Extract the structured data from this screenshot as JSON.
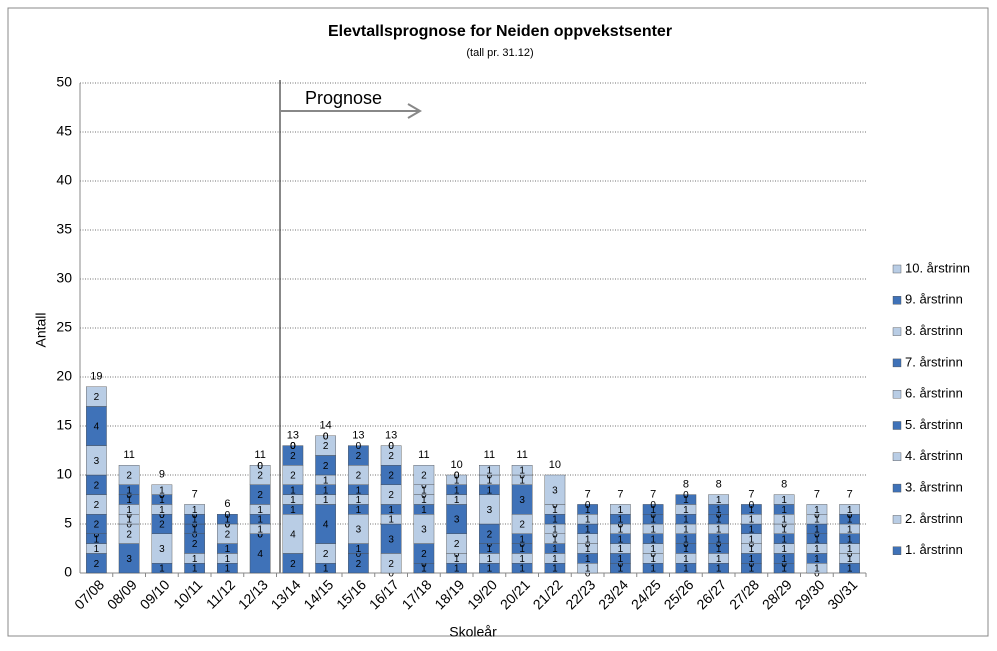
{
  "chart_data": {
    "type": "bar",
    "stacked": true,
    "title": "Elevtallsprognose for Neiden oppvekstsenter",
    "subtitle": "(tall pr. 31.12)",
    "x_label": "Skoleår",
    "y_label": "Antall",
    "annotation": "Prognose",
    "categories": [
      "07/08",
      "08/09",
      "09/10",
      "10/11",
      "11/12",
      "12/13",
      "13/14",
      "14/15",
      "15/16",
      "16/17",
      "17/18",
      "18/19",
      "19/20",
      "20/21",
      "21/22",
      "22/23",
      "23/24",
      "24/25",
      "25/26",
      "26/27",
      "27/28",
      "28/29",
      "29/30",
      "30/31"
    ],
    "totals": [
      19,
      11,
      9,
      7,
      6,
      11,
      13,
      14,
      13,
      13,
      11,
      10,
      11,
      11,
      10,
      7,
      7,
      7,
      8,
      8,
      7,
      8,
      7,
      7
    ],
    "series": [
      {
        "name": "1. årstrinn",
        "color": "#3f72b8",
        "values": [
          2,
          3,
          1,
          1,
          1,
          4,
          2,
          1,
          2,
          0,
          1,
          1,
          1,
          1,
          1,
          0,
          1,
          1,
          1,
          1,
          1,
          1,
          0,
          1
        ]
      },
      {
        "name": "2. årstrinn",
        "color": "#b9cde5",
        "values": [
          1,
          2,
          3,
          1,
          1,
          0,
          4,
          2,
          0,
          2,
          0,
          1,
          1,
          1,
          1,
          1,
          0,
          1,
          1,
          1,
          0,
          0,
          1,
          1
        ]
      },
      {
        "name": "3. årstrinn",
        "color": "#3f72b8",
        "values": [
          1,
          0,
          2,
          2,
          1,
          0,
          1,
          4,
          1,
          3,
          2,
          0,
          1,
          1,
          1,
          1,
          1,
          0,
          1,
          1,
          1,
          1,
          1,
          0
        ]
      },
      {
        "name": "4. årstrinn",
        "color": "#b9cde5",
        "values": [
          0,
          1,
          0,
          0,
          2,
          1,
          1,
          1,
          3,
          1,
          3,
          2,
          0,
          0,
          1,
          1,
          1,
          1,
          0,
          0,
          1,
          1,
          1,
          1
        ]
      },
      {
        "name": "5. årstrinn",
        "color": "#3f72b8",
        "values": [
          2,
          0,
          0,
          1,
          0,
          1,
          1,
          1,
          1,
          1,
          1,
          3,
          2,
          1,
          0,
          0,
          1,
          1,
          1,
          1,
          0,
          1,
          1,
          1
        ]
      },
      {
        "name": "6. årstrinn",
        "color": "#b9cde5",
        "values": [
          2,
          1,
          1,
          0,
          0,
          1,
          2,
          1,
          1,
          2,
          1,
          1,
          3,
          2,
          1,
          1,
          1,
          1,
          1,
          1,
          1,
          1,
          0,
          1
        ]
      },
      {
        "name": "7. årstrinn",
        "color": "#3f72b8",
        "values": [
          2,
          1,
          1,
          1,
          0,
          2,
          2,
          2,
          1,
          2,
          0,
          1,
          1,
          3,
          1,
          1,
          0,
          1,
          1,
          1,
          1,
          0,
          1,
          1
        ]
      },
      {
        "name": "8. årstrinn",
        "color": "#b9cde5",
        "values": [
          3,
          0,
          0,
          0,
          0,
          2,
          0,
          2,
          2,
          2,
          1,
          1,
          1,
          1,
          1,
          1,
          0,
          0,
          1,
          0,
          1,
          1,
          1,
          0
        ]
      },
      {
        "name": "9. årstrinn",
        "color": "#3f72b8",
        "values": [
          4,
          1,
          0,
          0,
          1,
          0,
          0,
          0,
          2,
          0,
          0,
          0,
          0,
          0,
          0,
          1,
          1,
          1,
          1,
          1,
          1,
          1,
          0,
          0
        ]
      },
      {
        "name": "10. årstrinn",
        "color": "#b9cde5",
        "values": [
          2,
          2,
          1,
          1,
          0,
          0,
          0,
          0,
          0,
          0,
          2,
          0,
          1,
          1,
          3,
          0,
          1,
          0,
          0,
          1,
          0,
          1,
          1,
          1
        ]
      }
    ],
    "ylim": [
      0,
      50
    ],
    "yticks": [
      0,
      5,
      10,
      15,
      20,
      25,
      30,
      35,
      40,
      45,
      50
    ],
    "grid": true,
    "legend": "right"
  }
}
